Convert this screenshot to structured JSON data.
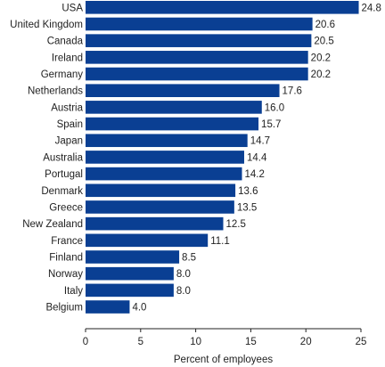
{
  "chart_data": {
    "type": "bar",
    "orientation": "horizontal",
    "categories": [
      "USA",
      "United Kingdom",
      "Canada",
      "Ireland",
      "Germany",
      "Netherlands",
      "Austria",
      "Spain",
      "Japan",
      "Australia",
      "Portugal",
      "Denmark",
      "Greece",
      "New Zealand",
      "France",
      "Finland",
      "Norway",
      "Italy",
      "Belgium"
    ],
    "values": [
      24.8,
      20.6,
      20.5,
      20.2,
      20.2,
      17.6,
      16.0,
      15.7,
      14.7,
      14.4,
      14.2,
      13.6,
      13.5,
      12.5,
      11.1,
      8.5,
      8.0,
      8.0,
      4.0
    ],
    "value_labels": [
      "24.8",
      "20.6",
      "20.5",
      "20.2",
      "20.2",
      "17.6",
      "16.0",
      "15.7",
      "14.7",
      "14.4",
      "14.2",
      "13.6",
      "13.5",
      "12.5",
      "11.1",
      "8.5",
      "8.0",
      "8.0",
      "4.0"
    ],
    "xlabel": "Percent of employees",
    "xlim": [
      0,
      25
    ],
    "xticks": [
      "0",
      "5",
      "10",
      "15",
      "20",
      "25"
    ],
    "bar_color": "#0a3f93",
    "grid": false,
    "legend": "none"
  }
}
